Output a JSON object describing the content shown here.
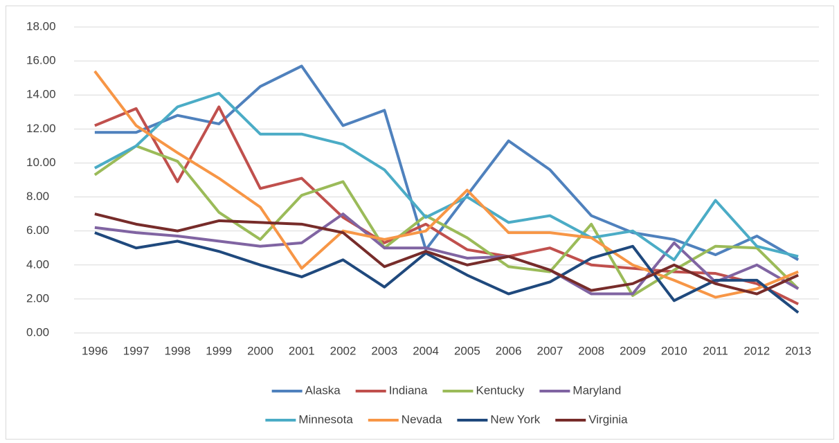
{
  "chart_data": {
    "type": "line",
    "categories": [
      "1996",
      "1997",
      "1998",
      "1999",
      "2000",
      "2001",
      "2002",
      "2003",
      "2004",
      "2005",
      "2006",
      "2007",
      "2008",
      "2009",
      "2010",
      "2011",
      "2012",
      "2013"
    ],
    "ylim": [
      0,
      18
    ],
    "yticks": [
      {
        "value": 0,
        "label": "0.00"
      },
      {
        "value": 2,
        "label": "2.00"
      },
      {
        "value": 4,
        "label": "4.00"
      },
      {
        "value": 6,
        "label": "6.00"
      },
      {
        "value": 8,
        "label": "8.00"
      },
      {
        "value": 10,
        "label": "10.00"
      },
      {
        "value": 12,
        "label": "12.00"
      },
      {
        "value": 14,
        "label": "14.00"
      },
      {
        "value": 16,
        "label": "16.00"
      },
      {
        "value": 18,
        "label": "18.00"
      }
    ],
    "grid": true,
    "legend": "bottom",
    "series": [
      {
        "name": "Alaska",
        "color": "#4f81bd",
        "values": [
          11.8,
          11.8,
          12.8,
          12.3,
          14.5,
          15.7,
          12.2,
          13.1,
          4.9,
          8.1,
          11.3,
          9.6,
          6.9,
          5.9,
          5.5,
          4.6,
          5.7,
          4.3
        ]
      },
      {
        "name": "Indiana",
        "color": "#c0504d",
        "values": [
          12.2,
          13.2,
          8.9,
          13.3,
          8.5,
          9.1,
          6.8,
          5.3,
          6.4,
          4.9,
          4.5,
          5.0,
          4.0,
          3.8,
          3.6,
          3.5,
          2.9,
          1.7
        ]
      },
      {
        "name": "Kentucky",
        "color": "#9bbb59",
        "values": [
          9.3,
          11.0,
          10.1,
          7.1,
          5.5,
          8.1,
          8.9,
          5.0,
          6.9,
          5.6,
          3.9,
          3.6,
          6.4,
          2.2,
          3.7,
          5.1,
          5.0,
          2.6
        ]
      },
      {
        "name": "Maryland",
        "color": "#8064a2",
        "values": [
          6.2,
          5.9,
          5.7,
          5.4,
          5.1,
          5.3,
          7.0,
          5.0,
          5.0,
          4.4,
          4.5,
          3.7,
          2.3,
          2.3,
          5.3,
          3.0,
          4.0,
          2.6
        ]
      },
      {
        "name": "Minnesota",
        "color": "#4bacc6",
        "values": [
          9.7,
          11.0,
          13.3,
          14.1,
          11.7,
          11.7,
          11.1,
          9.6,
          6.8,
          8.0,
          6.5,
          6.9,
          5.6,
          6.0,
          4.3,
          7.8,
          5.1,
          4.5
        ]
      },
      {
        "name": "Nevada",
        "color": "#f79646",
        "values": [
          15.4,
          12.2,
          10.6,
          9.1,
          7.4,
          3.8,
          6.0,
          5.5,
          6.0,
          8.4,
          5.9,
          5.9,
          5.6,
          4.0,
          3.1,
          2.1,
          2.6,
          3.6
        ]
      },
      {
        "name": "New York",
        "color": "#1f497d",
        "values": [
          5.9,
          5.0,
          5.4,
          4.8,
          4.0,
          3.3,
          4.3,
          2.7,
          4.7,
          3.4,
          2.3,
          3.0,
          4.4,
          5.1,
          1.9,
          3.1,
          3.1,
          1.2
        ]
      },
      {
        "name": "Virginia",
        "color": "#772c2a",
        "values": [
          7.0,
          6.4,
          6.0,
          6.6,
          6.5,
          6.4,
          5.9,
          3.9,
          4.8,
          4.0,
          4.5,
          3.7,
          2.5,
          2.9,
          4.0,
          2.9,
          2.3,
          3.4
        ]
      }
    ]
  }
}
